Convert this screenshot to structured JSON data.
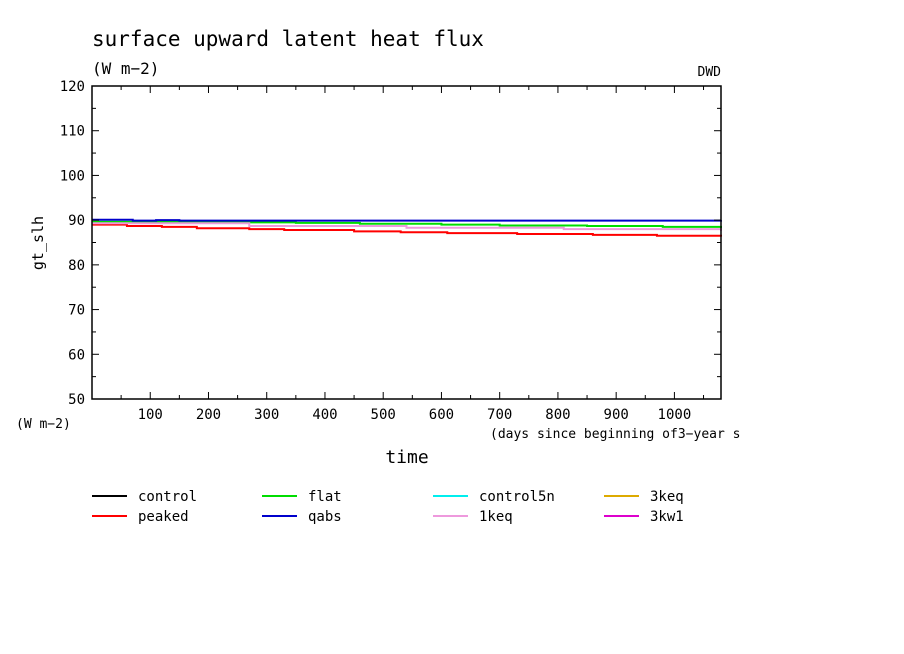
{
  "chart_data": {
    "type": "line",
    "title": "surface upward latent heat flux",
    "subtitle": "(W m−2)",
    "source_label": "DWD",
    "ylabel": "gt_slh",
    "yunit_label": "(W m−2)",
    "xlabel": "time",
    "xlabel_note": "(days since beginning of3−year s",
    "xlim": [
      0,
      1080
    ],
    "ylim": [
      50,
      120
    ],
    "xticks": [
      100,
      200,
      300,
      400,
      500,
      600,
      700,
      800,
      900,
      1000
    ],
    "yticks": [
      50,
      60,
      70,
      80,
      90,
      100,
      110,
      120
    ],
    "grid": false,
    "legend_position": "bottom",
    "series": [
      {
        "name": "control",
        "color": "#000000",
        "visible": false,
        "x": [
          0,
          1080
        ],
        "y": [
          89.2,
          87.5
        ]
      },
      {
        "name": "peaked",
        "color": "#ff0000",
        "x": [
          0,
          60,
          120,
          180,
          270,
          330,
          450,
          530,
          610,
          730,
          860,
          970,
          1080
        ],
        "y": [
          89.0,
          88.7,
          88.5,
          88.2,
          88.0,
          87.8,
          87.5,
          87.3,
          87.1,
          86.9,
          86.7,
          86.5,
          86.3
        ]
      },
      {
        "name": "flat",
        "color": "#00dd00",
        "x": [
          0,
          80,
          200,
          350,
          460,
          600,
          700,
          850,
          980,
          1080
        ],
        "y": [
          89.6,
          89.6,
          89.5,
          89.4,
          89.2,
          89.0,
          88.8,
          88.7,
          88.5,
          88.2
        ]
      },
      {
        "name": "qabs",
        "color": "#0000cc",
        "x": [
          0,
          70,
          110,
          150,
          1080
        ],
        "y": [
          90.1,
          89.9,
          90.0,
          89.9,
          90.0
        ]
      },
      {
        "name": "control5n",
        "color": "#00eeee",
        "visible": false,
        "x": [
          0,
          1080
        ],
        "y": [
          89.3,
          87.8
        ]
      },
      {
        "name": "1keq",
        "color": "#ee99dd",
        "x": [
          0,
          270,
          540,
          810,
          1080
        ],
        "y": [
          89.3,
          88.7,
          88.3,
          88.0,
          87.6
        ]
      },
      {
        "name": "3keq",
        "color": "#ddaa00",
        "visible": false,
        "x": [
          0,
          1080
        ],
        "y": [
          89.4,
          88.2
        ]
      },
      {
        "name": "3kw1",
        "color": "#dd00cc",
        "visible": false,
        "x": [
          0,
          1080
        ],
        "y": [
          89.2,
          87.7
        ]
      }
    ]
  }
}
